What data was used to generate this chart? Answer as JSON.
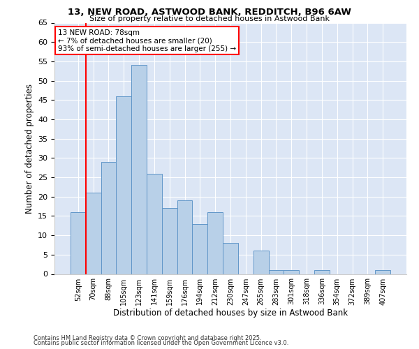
{
  "title1": "13, NEW ROAD, ASTWOOD BANK, REDDITCH, B96 6AW",
  "title2": "Size of property relative to detached houses in Astwood Bank",
  "xlabel": "Distribution of detached houses by size in Astwood Bank",
  "ylabel": "Number of detached properties",
  "categories": [
    "52sqm",
    "70sqm",
    "88sqm",
    "105sqm",
    "123sqm",
    "141sqm",
    "159sqm",
    "176sqm",
    "194sqm",
    "212sqm",
    "230sqm",
    "247sqm",
    "265sqm",
    "283sqm",
    "301sqm",
    "318sqm",
    "336sqm",
    "354sqm",
    "372sqm",
    "389sqm",
    "407sqm"
  ],
  "values": [
    16,
    21,
    29,
    46,
    54,
    26,
    17,
    19,
    13,
    16,
    8,
    0,
    6,
    1,
    1,
    0,
    1,
    0,
    0,
    0,
    1
  ],
  "bar_color": "#b8d0e8",
  "bar_edge_color": "#6096c8",
  "highlight_bar_index": 1,
  "highlight_color": "#ff0000",
  "annotation_text": "13 NEW ROAD: 78sqm\n← 7% of detached houses are smaller (20)\n93% of semi-detached houses are larger (255) →",
  "ylim": [
    0,
    65
  ],
  "yticks": [
    0,
    5,
    10,
    15,
    20,
    25,
    30,
    35,
    40,
    45,
    50,
    55,
    60,
    65
  ],
  "background_color": "#dce6f5",
  "fig_background": "#ffffff",
  "footer_text1": "Contains HM Land Registry data © Crown copyright and database right 2025.",
  "footer_text2": "Contains public sector information licensed under the Open Government Licence v3.0."
}
